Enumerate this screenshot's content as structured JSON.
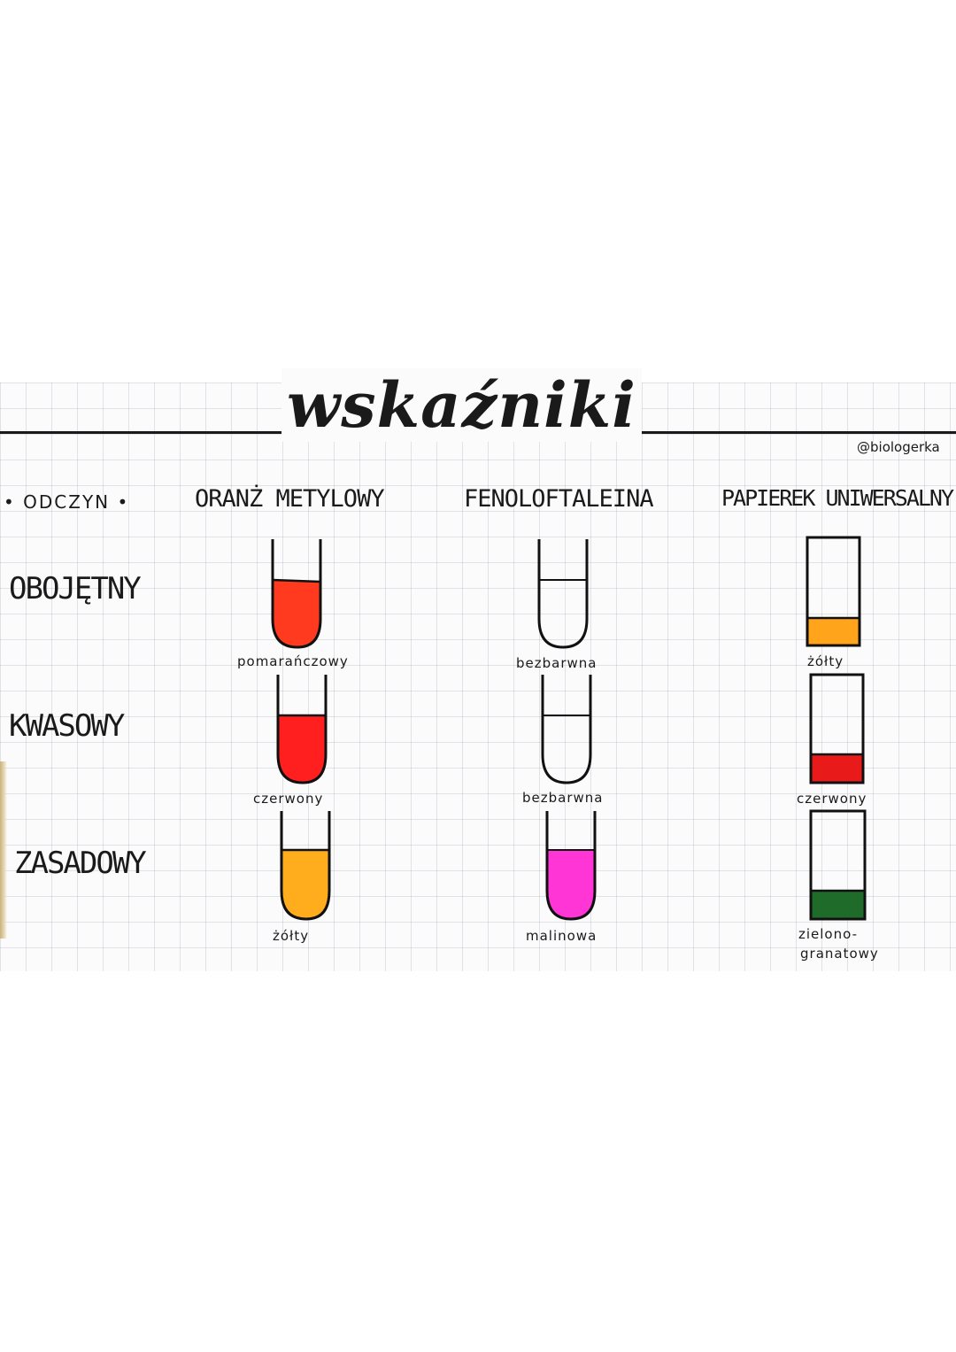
{
  "title": "wskaźniki",
  "author_handle": "@biologerka",
  "header_label": "• ODCZYN •",
  "indicators": [
    "ORANŻ METYLOWY",
    "FENOLOFTALEINA",
    "PAPIEREK UNIWERSALNY"
  ],
  "rows": [
    {
      "reaction": "OBOJĘTNY",
      "results": [
        "pomarańczowy",
        "bezbarwna",
        "żółty"
      ],
      "colors": [
        "#ff3a1f",
        "none",
        "#ffa41b"
      ]
    },
    {
      "reaction": "KWASOWY",
      "results": [
        "czerwony",
        "bezbarwna",
        "czerwony"
      ],
      "colors": [
        "#ff1f1f",
        "none",
        "#e81a1a"
      ]
    },
    {
      "reaction": "ZASADOWY",
      "results": [
        "żółty",
        "malinowa",
        "zielono-",
        "granatowy"
      ],
      "colors": [
        "#ffad1c",
        "#ff35d6",
        "#1f6b2a"
      ]
    }
  ]
}
